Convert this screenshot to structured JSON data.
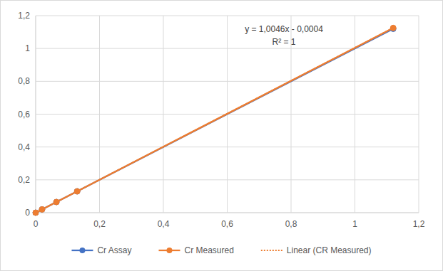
{
  "chart_data": {
    "type": "line",
    "annotations": [
      "y = 1,0046x - 0,0004",
      "R² = 1"
    ],
    "x": [
      0,
      0.02,
      0.065,
      0.13,
      1.12
    ],
    "series": [
      {
        "name": "Cr Assay",
        "color": "#4472c4",
        "marker": "circle",
        "line_style": "solid",
        "values": [
          0,
          0.02,
          0.065,
          0.13,
          1.12
        ]
      },
      {
        "name": "Cr Measured",
        "color": "#ed7d31",
        "marker": "circle",
        "line_style": "solid",
        "values": [
          0,
          0.02,
          0.065,
          0.13,
          1.125
        ]
      },
      {
        "name": "Linear (CR Measured)",
        "color": "#ed7d31",
        "marker": "none",
        "line_style": "dotted",
        "values": [
          0,
          0.02,
          0.065,
          0.13,
          1.125
        ]
      }
    ],
    "xlim": [
      0,
      1.2
    ],
    "ylim": [
      0,
      1.2
    ],
    "xticks": [
      0,
      {
        "value": 0.2,
        "label": "0,2"
      },
      {
        "value": 0.4,
        "label": "0,4"
      },
      {
        "value": 0.6,
        "label": "0,6"
      },
      {
        "value": 0.8,
        "label": "0,8"
      },
      1,
      {
        "value": 1.2,
        "label": "1,2"
      }
    ],
    "yticks": [
      0,
      {
        "value": 0.2,
        "label": "0,2"
      },
      {
        "value": 0.4,
        "label": "0,4"
      },
      {
        "value": 0.6,
        "label": "0,6"
      },
      {
        "value": 0.8,
        "label": "0,8"
      },
      1,
      {
        "value": 1.2,
        "label": "1,2"
      }
    ],
    "grid": true,
    "legend": "bottom"
  }
}
